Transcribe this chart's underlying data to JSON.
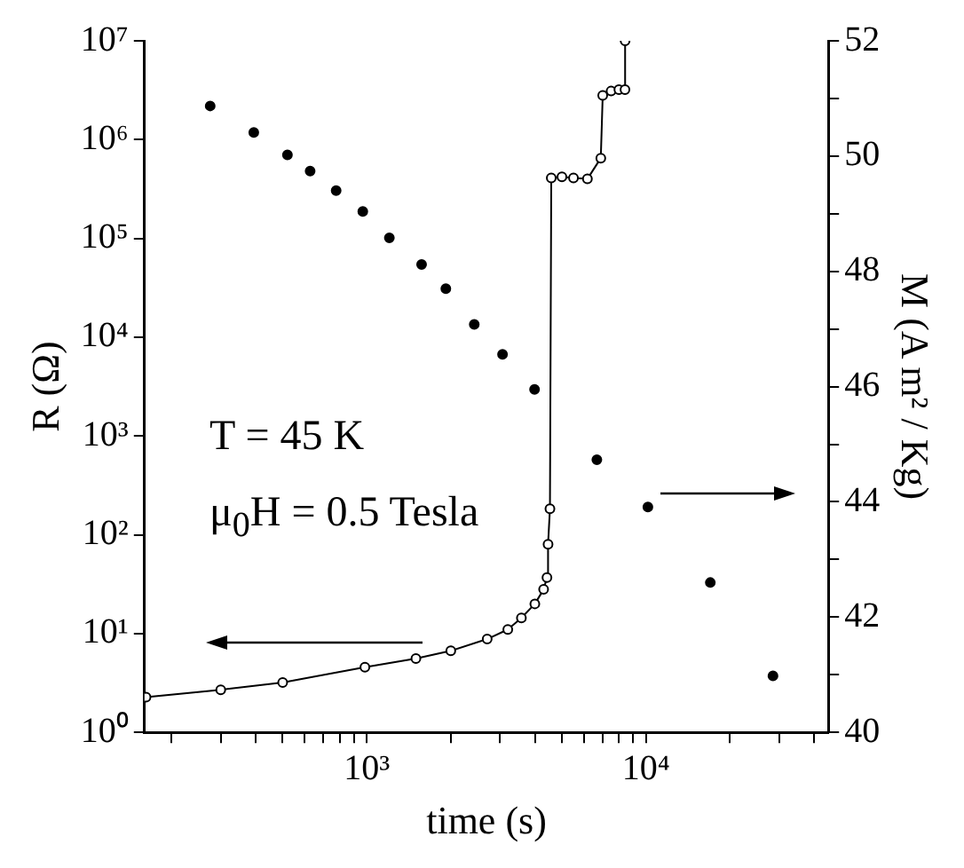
{
  "chart_data": {
    "type": "line",
    "xlabel": "time (s)",
    "ylabel": "R (Ω)",
    "y2label": "M (A m² / Kg)",
    "log": "xy",
    "annotations": [
      "T = 45 K",
      "μ$_{0}$H = 0.5 Tesla"
    ],
    "xlim": [
      160,
      45000
    ],
    "xticks": [
      {
        "value": 200,
        "label": null
      },
      {
        "value": 300,
        "label": null
      },
      {
        "value": 400,
        "label": null
      },
      {
        "value": 500,
        "label": null
      },
      {
        "value": 600,
        "label": null
      },
      {
        "value": 700,
        "label": null
      },
      {
        "value": 800,
        "label": null
      },
      {
        "value": 900,
        "label": null
      },
      {
        "value": 1000,
        "label": "10³"
      },
      {
        "value": 2000,
        "label": null
      },
      {
        "value": 3000,
        "label": null
      },
      {
        "value": 4000,
        "label": null
      },
      {
        "value": 5000,
        "label": null
      },
      {
        "value": 6000,
        "label": null
      },
      {
        "value": 7000,
        "label": null
      },
      {
        "value": 8000,
        "label": null
      },
      {
        "value": 9000,
        "label": null
      },
      {
        "value": 10000,
        "label": "10⁴"
      },
      {
        "value": 20000,
        "label": null
      },
      {
        "value": 30000,
        "label": null
      },
      {
        "value": 40000,
        "label": null
      }
    ],
    "ylim": [
      1,
      10000000
    ],
    "yticks": [
      {
        "value": 1,
        "label": "10⁰"
      },
      {
        "value": 10,
        "label": "10¹"
      },
      {
        "value": 100,
        "label": "10²"
      },
      {
        "value": 1000,
        "label": "10³"
      },
      {
        "value": 10000,
        "label": "10⁴"
      },
      {
        "value": 100000,
        "label": "10⁵"
      },
      {
        "value": 1000000,
        "label": "10⁶"
      },
      {
        "value": 10000000,
        "label": "10⁷"
      }
    ],
    "y2lim": [
      40,
      52
    ],
    "y2ticks": [
      40,
      {
        "value": 41,
        "label": null
      },
      42,
      {
        "value": 43,
        "label": null
      },
      44,
      {
        "value": 45,
        "label": null
      },
      46,
      {
        "value": 47,
        "label": null
      },
      48,
      {
        "value": 49,
        "label": null
      },
      50,
      {
        "value": 51,
        "label": null
      },
      52
    ],
    "grid": false,
    "legend": false,
    "marker": "circle",
    "series": [
      {
        "type": "line",
        "color": "#000000",
        "x": [
          162,
          300,
          500,
          985,
          1500,
          2000,
          2700,
          3200,
          3580,
          4000,
          4300,
          4420,
          4460,
          4530,
          4580,
          5000,
          5500,
          6170,
          6890,
          7000,
          7500,
          8000,
          8410,
          8420
        ],
        "values": [
          2.27,
          2.7,
          3.2,
          4.57,
          5.6,
          6.7,
          8.8,
          11,
          14.4,
          20,
          28,
          37,
          80,
          183,
          410000,
          420000,
          410000,
          400000,
          650000,
          2800000,
          3100000,
          3200000,
          3200000,
          10000000
        ]
      },
      {
        "type": "scatter",
        "axis": "y2",
        "color": "#000000",
        "x": [
          275,
          394,
          520,
          627,
          777,
          968,
          1205,
          1572,
          1920,
          2427,
          3064,
          3990,
          6670,
          10160,
          17000,
          28500
        ],
        "values": [
          50.87,
          50.41,
          50.02,
          49.74,
          49.4,
          49.04,
          48.58,
          48.12,
          47.7,
          47.08,
          46.56,
          45.95,
          44.73,
          43.91,
          42.6,
          40.98
        ]
      }
    ]
  }
}
